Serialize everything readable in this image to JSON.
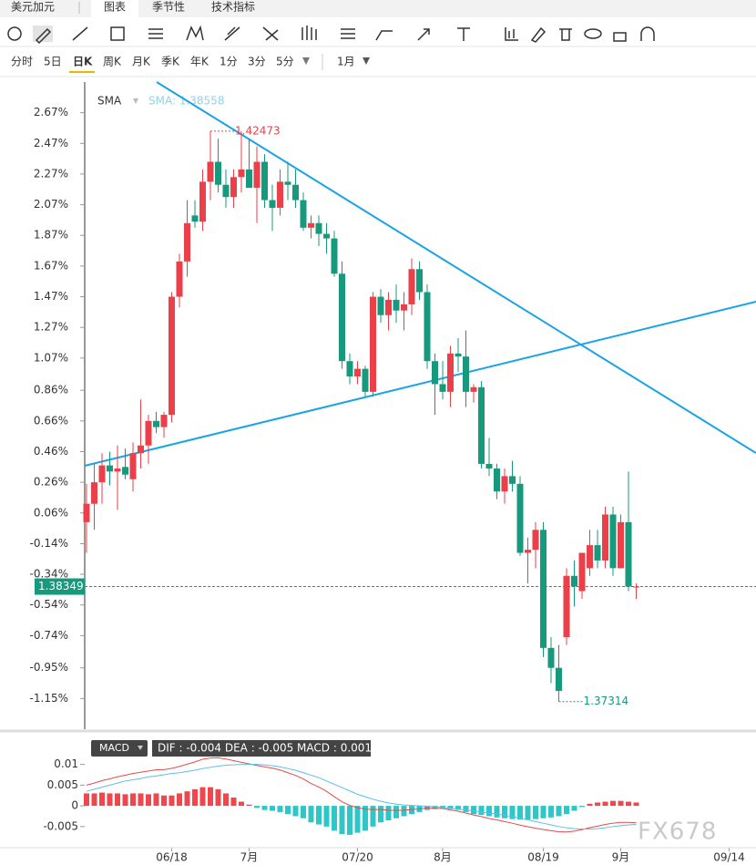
{
  "ui": {
    "tabs": [
      "美元加元",
      "图表",
      "季节性",
      "技术指标"
    ],
    "periods": [
      "分时",
      "5日",
      "日K",
      "周K",
      "月K",
      "季K",
      "年K",
      "1分",
      "3分",
      "5分"
    ],
    "range": "1月",
    "watermark": "FX678"
  },
  "chart_data": [
    {
      "type": "candlestick",
      "legend": "SMA",
      "sma_label": "SMA: 1.38558",
      "ylim": [
        -1.35,
        2.87
      ],
      "yticks": [
        {
          "value": 2.67,
          "label": "2.67%"
        },
        {
          "value": 2.47,
          "label": "2.47%"
        },
        {
          "value": 2.27,
          "label": "2.27%"
        },
        {
          "value": 2.07,
          "label": "2.07%"
        },
        {
          "value": 1.87,
          "label": "1.87%"
        },
        {
          "value": 1.67,
          "label": "1.67%"
        },
        {
          "value": 1.47,
          "label": "1.47%"
        },
        {
          "value": 1.27,
          "label": "1.27%"
        },
        {
          "value": 1.07,
          "label": "1.07%"
        },
        {
          "value": 0.86,
          "label": "0.86%"
        },
        {
          "value": 0.66,
          "label": "0.66%"
        },
        {
          "value": 0.46,
          "label": "0.46%"
        },
        {
          "value": 0.26,
          "label": "0.26%"
        },
        {
          "value": 0.06,
          "label": "0.06%"
        },
        {
          "value": -0.14,
          "label": "-0.14%"
        },
        {
          "value": -0.34,
          "label": "-0.34%"
        },
        {
          "value": -0.54,
          "label": "-0.54%"
        },
        {
          "value": -0.74,
          "label": "-0.74%"
        },
        {
          "value": -0.95,
          "label": "-0.95%"
        },
        {
          "value": -1.15,
          "label": "-1.15%"
        }
      ],
      "up_color": "#eb3f4a",
      "down_color": "#16997c",
      "last_price": {
        "value": -0.42,
        "label": "1.38349"
      },
      "high_label": {
        "value": 2.55,
        "label": "1.42473"
      },
      "low_label": {
        "value": -1.17,
        "label": "1.37314"
      },
      "candles": [
        [
          0.0,
          0.25,
          -0.2,
          0.12
        ],
        [
          0.12,
          0.38,
          -0.05,
          0.26
        ],
        [
          0.26,
          0.45,
          0.12,
          0.37
        ],
        [
          0.37,
          0.46,
          0.24,
          0.33
        ],
        [
          0.33,
          0.5,
          0.08,
          0.35
        ],
        [
          0.36,
          0.48,
          0.28,
          0.31
        ],
        [
          0.28,
          0.52,
          0.2,
          0.45
        ],
        [
          0.45,
          0.8,
          0.35,
          0.5
        ],
        [
          0.5,
          0.7,
          0.38,
          0.66
        ],
        [
          0.66,
          0.72,
          0.58,
          0.62
        ],
        [
          0.62,
          0.72,
          0.55,
          0.7
        ],
        [
          0.7,
          1.5,
          0.65,
          1.47
        ],
        [
          1.47,
          1.75,
          1.4,
          1.7
        ],
        [
          1.7,
          2.1,
          1.6,
          1.95
        ],
        [
          2.0,
          2.1,
          1.92,
          1.96
        ],
        [
          1.96,
          2.3,
          1.9,
          2.22
        ],
        [
          2.22,
          2.55,
          2.1,
          2.35
        ],
        [
          2.35,
          2.5,
          2.15,
          2.2
        ],
        [
          2.2,
          2.3,
          2.05,
          2.12
        ],
        [
          2.12,
          2.3,
          2.05,
          2.25
        ],
        [
          2.25,
          2.55,
          2.15,
          2.3
        ],
        [
          2.3,
          2.5,
          2.2,
          2.18
        ],
        [
          2.18,
          2.45,
          1.95,
          2.35
        ],
        [
          2.35,
          2.4,
          2.05,
          2.1
        ],
        [
          2.1,
          2.2,
          1.9,
          2.05
        ],
        [
          2.05,
          2.3,
          2.0,
          2.22
        ],
        [
          2.22,
          2.35,
          2.1,
          2.2
        ],
        [
          2.2,
          2.3,
          2.05,
          2.1
        ],
        [
          2.1,
          2.15,
          1.9,
          1.92
        ],
        [
          1.92,
          2.0,
          1.85,
          1.95
        ],
        [
          1.95,
          2.0,
          1.8,
          1.88
        ],
        [
          1.88,
          1.95,
          1.75,
          1.85
        ],
        [
          1.85,
          1.9,
          1.6,
          1.62
        ],
        [
          1.62,
          1.7,
          1.0,
          1.05
        ],
        [
          1.05,
          1.1,
          0.9,
          0.95
        ],
        [
          0.95,
          1.05,
          0.9,
          1.0
        ],
        [
          1.0,
          1.02,
          0.82,
          0.85
        ],
        [
          0.85,
          1.5,
          0.82,
          1.47
        ],
        [
          1.47,
          1.52,
          1.3,
          1.35
        ],
        [
          1.35,
          1.5,
          1.25,
          1.45
        ],
        [
          1.45,
          1.55,
          1.3,
          1.38
        ],
        [
          1.38,
          1.5,
          1.25,
          1.42
        ],
        [
          1.42,
          1.72,
          1.35,
          1.65
        ],
        [
          1.65,
          1.7,
          1.45,
          1.5
        ],
        [
          1.5,
          1.55,
          1.0,
          1.05
        ],
        [
          1.05,
          1.1,
          0.7,
          0.9
        ],
        [
          0.9,
          1.05,
          0.8,
          0.85
        ],
        [
          0.85,
          1.15,
          0.75,
          1.1
        ],
        [
          1.1,
          1.2,
          0.98,
          1.08
        ],
        [
          1.08,
          1.25,
          0.75,
          0.85
        ],
        [
          0.85,
          0.9,
          0.78,
          0.88
        ],
        [
          0.88,
          0.92,
          0.35,
          0.38
        ],
        [
          0.38,
          0.55,
          0.3,
          0.35
        ],
        [
          0.35,
          0.38,
          0.15,
          0.2
        ],
        [
          0.2,
          0.35,
          0.12,
          0.3
        ],
        [
          0.3,
          0.4,
          0.2,
          0.25
        ],
        [
          0.25,
          0.3,
          -0.22,
          -0.2
        ],
        [
          -0.2,
          -0.1,
          -0.4,
          -0.18
        ],
        [
          -0.18,
          0.0,
          -0.3,
          -0.05
        ],
        [
          -0.05,
          0.0,
          -0.88,
          -0.82
        ],
        [
          -0.82,
          -0.75,
          -1.05,
          -0.95
        ],
        [
          -0.95,
          -0.8,
          -1.17,
          -1.1
        ],
        [
          -0.75,
          -0.3,
          -0.8,
          -0.35
        ],
        [
          -0.35,
          -0.25,
          -0.55,
          -0.42
        ],
        [
          -0.45,
          -0.2,
          -0.5,
          -0.2
        ],
        [
          -0.3,
          -0.05,
          -0.35,
          -0.15
        ],
        [
          -0.15,
          -0.05,
          -0.3,
          -0.25
        ],
        [
          -0.25,
          0.1,
          -0.3,
          0.05
        ],
        [
          0.05,
          0.1,
          -0.35,
          -0.3
        ],
        [
          -0.3,
          0.05,
          -0.3,
          0.0
        ],
        [
          0.0,
          0.33,
          -0.45,
          -0.42
        ],
        [
          -0.42,
          -0.4,
          -0.5,
          -0.42
        ]
      ],
      "xticks": [
        {
          "value": 11,
          "label": "06/18"
        },
        {
          "value": 21,
          "label": "7月"
        },
        {
          "value": 35,
          "label": "07/20"
        },
        {
          "value": 46,
          "label": "8月"
        },
        {
          "value": 59,
          "label": "08/19"
        },
        {
          "value": 69,
          "label": "9月"
        },
        {
          "value": 83,
          "label": "09/14"
        }
      ]
    },
    {
      "type": "macd",
      "legend": "MACD",
      "summary": "DIF : -0.004   DEA : -0.005   MACD : 0.001",
      "ylim": [
        -0.009,
        0.013
      ],
      "yticks": [
        0.01,
        0.005,
        0,
        -0.005
      ],
      "pos_color": "#f0474e",
      "neg_color": "#2fc6c8",
      "histogram": [
        0.003,
        0.003,
        0.0032,
        0.003,
        0.003,
        0.0028,
        0.003,
        0.003,
        0.0028,
        0.003,
        0.0025,
        0.0025,
        0.003,
        0.0035,
        0.004,
        0.0045,
        0.0045,
        0.004,
        0.003,
        0.002,
        0.001,
        0.0003,
        -0.0005,
        -0.001,
        -0.0012,
        -0.0015,
        -0.002,
        -0.0025,
        -0.003,
        -0.004,
        -0.0045,
        -0.005,
        -0.006,
        -0.0068,
        -0.007,
        -0.0065,
        -0.006,
        -0.005,
        -0.004,
        -0.0035,
        -0.003,
        -0.0025,
        -0.002,
        -0.0015,
        -0.001,
        -0.0008,
        -0.0005,
        -0.0008,
        -0.001,
        -0.0015,
        -0.002,
        -0.0022,
        -0.0025,
        -0.0028,
        -0.003,
        -0.0032,
        -0.0033,
        -0.0033,
        -0.0032,
        -0.003,
        -0.0028,
        -0.0025,
        -0.002,
        -0.0012,
        -0.0003,
        0.0005,
        0.0008,
        0.001,
        0.0012,
        0.0012,
        0.001,
        0.0008
      ],
      "series": [
        {
          "name": "DIF",
          "color": "#e84a4a",
          "values": [
            0.005,
            0.0055,
            0.0061,
            0.0065,
            0.007,
            0.0074,
            0.0078,
            0.0081,
            0.0084,
            0.0087,
            0.00875,
            0.00905,
            0.0095,
            0.01005,
            0.0106,
            0.01125,
            0.01155,
            0.0116,
            0.0113,
            0.0109,
            0.0105,
            0.01015,
            0.00975,
            0.0094,
            0.0091,
            0.00865,
            0.008,
            0.00735,
            0.0065,
            0.0054,
            0.00455,
            0.0035,
            0.0022,
            0.001,
            0.0001,
            -0.00045,
            -0.0008,
            -0.0009,
            -0.0009,
            -0.00105,
            -0.0011,
            -0.00105,
            -0.0009,
            -0.00075,
            -0.0005,
            -0.0006,
            -0.00065,
            -0.001,
            -0.0013,
            -0.00175,
            -0.0022,
            -0.0026,
            -0.00305,
            -0.0034,
            -0.0038,
            -0.0042,
            -0.00465,
            -0.00505,
            -0.0054,
            -0.0057,
            -0.006,
            -0.00625,
            -0.0063,
            -0.0061,
            -0.00575,
            -0.00525,
            -0.0049,
            -0.0045,
            -0.0042,
            -0.004,
            -0.004,
            -0.0041
          ]
        },
        {
          "name": "DEA",
          "color": "#5bbfe8",
          "values": [
            0.0035,
            0.004,
            0.0045,
            0.005,
            0.0055,
            0.006,
            0.0063,
            0.0066,
            0.007,
            0.0072,
            0.0075,
            0.0078,
            0.008,
            0.0083,
            0.0086,
            0.009,
            0.0093,
            0.0096,
            0.0098,
            0.0099,
            0.01,
            0.01,
            0.01,
            0.0099,
            0.0097,
            0.0094,
            0.009,
            0.0086,
            0.008,
            0.0074,
            0.0068,
            0.006,
            0.0052,
            0.0044,
            0.0036,
            0.0028,
            0.0022,
            0.0016,
            0.0011,
            0.0007,
            0.0004,
            0.0002,
            0.0001,
            0,
            -0.0001,
            -0.0002,
            -0.0004,
            -0.0006,
            -0.0008,
            -0.001,
            -0.0012,
            -0.0015,
            -0.0018,
            -0.002,
            -0.0023,
            -0.0026,
            -0.003,
            -0.0034,
            -0.0038,
            -0.0042,
            -0.0046,
            -0.005,
            -0.0053,
            -0.0055,
            -0.0056,
            -0.0056,
            -0.0055,
            -0.0053,
            -0.005,
            -0.0048,
            -0.0046,
            -0.0045
          ]
        }
      ]
    }
  ]
}
